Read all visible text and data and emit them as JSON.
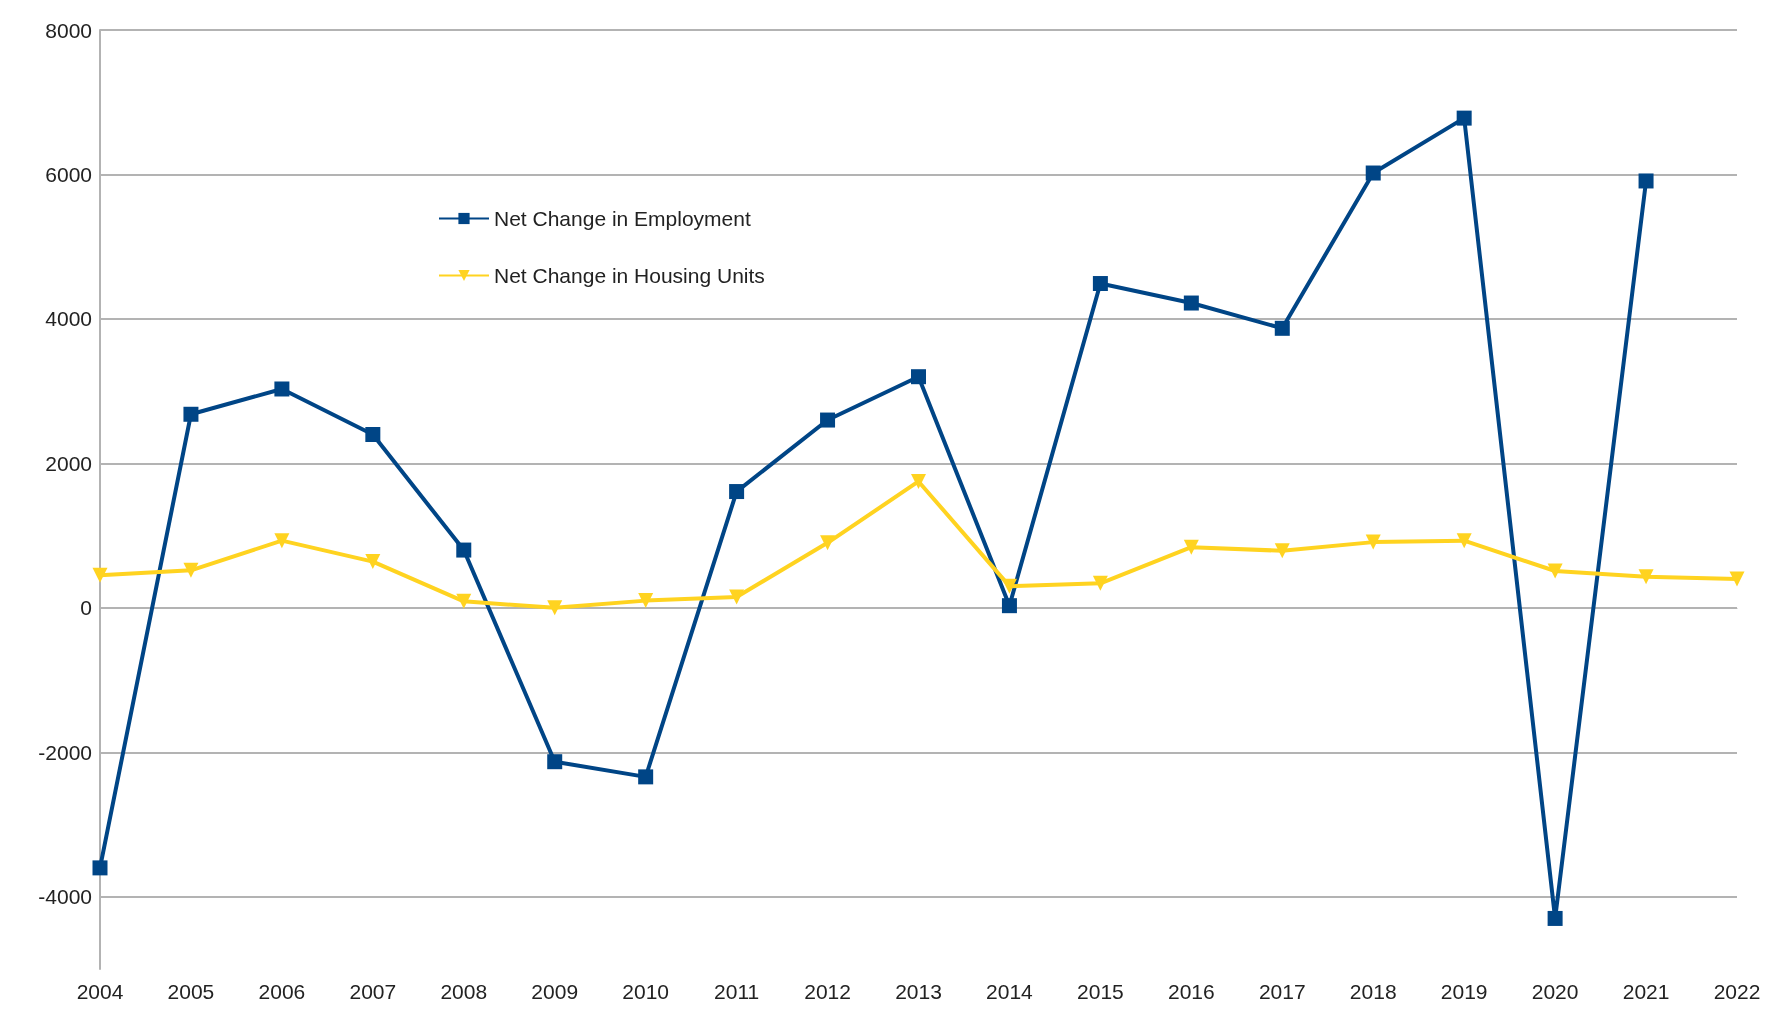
{
  "chart_data": {
    "type": "line",
    "categories": [
      "2004",
      "2005",
      "2006",
      "2007",
      "2008",
      "2009",
      "2010",
      "2011",
      "2012",
      "2013",
      "2014",
      "2015",
      "2016",
      "2017",
      "2018",
      "2019",
      "2020",
      "2021",
      "2022"
    ],
    "series": [
      {
        "name": "Net Change in Employment",
        "color": "#004586",
        "marker": "square",
        "values": [
          -3600,
          2680,
          3030,
          2400,
          800,
          -2130,
          -2340,
          1610,
          2600,
          3200,
          30,
          4490,
          4220,
          3870,
          6020,
          6780,
          -4300,
          5910,
          null
        ]
      },
      {
        "name": "Net Change in Housing Units",
        "color": "#ffd320",
        "marker": "triangle",
        "values": [
          450,
          520,
          930,
          640,
          90,
          0,
          100,
          150,
          900,
          1750,
          300,
          340,
          840,
          790,
          910,
          930,
          510,
          430,
          400
        ]
      }
    ],
    "ylim": [
      -5000,
      8000
    ],
    "yticks": [
      -4000,
      -2000,
      0,
      2000,
      4000,
      6000,
      8000
    ],
    "grid": "y",
    "legend": "top left"
  }
}
